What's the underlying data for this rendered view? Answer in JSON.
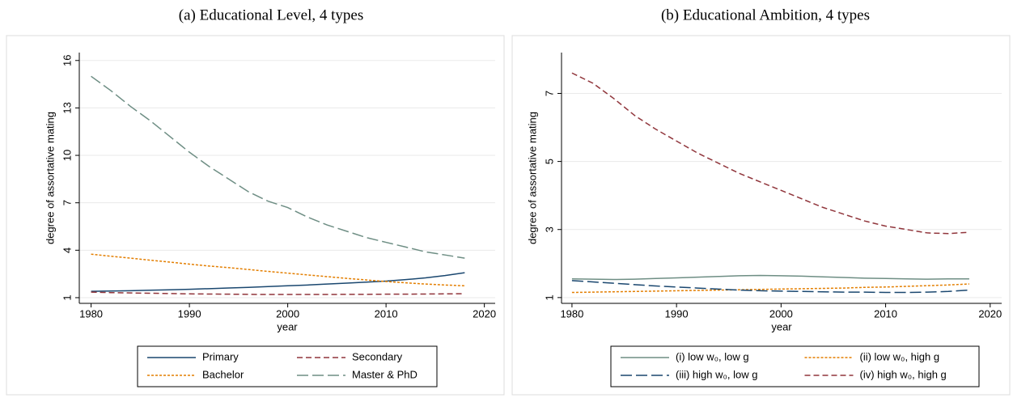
{
  "chart_data": [
    {
      "type": "line",
      "title": "(a) Educational Level, 4 types",
      "x_label": "year",
      "y_label": "degree of assortative mating",
      "x": [
        1980,
        1982,
        1984,
        1986,
        1988,
        1990,
        1992,
        1994,
        1996,
        1998,
        2000,
        2002,
        2004,
        2006,
        2008,
        2010,
        2012,
        2014,
        2016,
        2018
      ],
      "xlim": [
        1978.8,
        2021.1
      ],
      "xticks": [
        1980,
        1990,
        2000,
        2010,
        2020
      ],
      "ylim": [
        0.64,
        16.5
      ],
      "yticks": [
        1,
        4,
        7,
        10,
        13,
        16
      ],
      "grid": true,
      "series": [
        {
          "name": "Primary",
          "color": "#1a476f",
          "dash": "solid",
          "values": [
            1.4,
            1.42,
            1.44,
            1.47,
            1.5,
            1.53,
            1.57,
            1.61,
            1.65,
            1.7,
            1.75,
            1.8,
            1.86,
            1.92,
            1.98,
            2.05,
            2.14,
            2.25,
            2.4,
            2.58
          ]
        },
        {
          "name": "Secondary",
          "color": "#90353b",
          "dash": "dashed",
          "values": [
            1.35,
            1.32,
            1.3,
            1.28,
            1.26,
            1.24,
            1.23,
            1.22,
            1.21,
            1.2,
            1.2,
            1.2,
            1.2,
            1.21,
            1.21,
            1.22,
            1.22,
            1.23,
            1.24,
            1.25
          ]
        },
        {
          "name": "Bachelor",
          "color": "#e37e00",
          "dash": "dotted",
          "values": [
            3.75,
            3.62,
            3.5,
            3.37,
            3.25,
            3.12,
            3.0,
            2.9,
            2.78,
            2.66,
            2.55,
            2.44,
            2.33,
            2.22,
            2.12,
            2.02,
            1.94,
            1.86,
            1.8,
            1.75
          ]
        },
        {
          "name": "Master & PhD",
          "color": "#6e8e84",
          "dash": "longdash",
          "values": [
            15,
            14.1,
            13.1,
            12.2,
            11.2,
            10.2,
            9.3,
            8.5,
            7.7,
            7.1,
            6.7,
            6.1,
            5.6,
            5.2,
            4.8,
            4.5,
            4.2,
            3.9,
            3.7,
            3.5
          ]
        }
      ]
    },
    {
      "type": "line",
      "title": "(b) Educational Ambition, 4 types",
      "x_label": "year",
      "y_label": "degree of assortative mating",
      "x": [
        1980,
        1982,
        1984,
        1986,
        1988,
        1990,
        1992,
        1994,
        1996,
        1998,
        2000,
        2002,
        2004,
        2006,
        2008,
        2010,
        2012,
        2014,
        2016,
        2018
      ],
      "xlim": [
        1979,
        2021.1
      ],
      "xticks": [
        1980,
        1990,
        2000,
        2010,
        2020
      ],
      "ylim": [
        0.83,
        8.2
      ],
      "yticks": [
        1,
        3,
        5,
        7
      ],
      "grid": true,
      "series": [
        {
          "name": "(i) low w₀, low g",
          "color": "#6e8e84",
          "dash": "solid",
          "values": [
            1.55,
            1.54,
            1.53,
            1.54,
            1.56,
            1.58,
            1.6,
            1.62,
            1.64,
            1.65,
            1.64,
            1.63,
            1.61,
            1.59,
            1.57,
            1.56,
            1.55,
            1.54,
            1.55,
            1.55
          ]
        },
        {
          "name": "(ii) low w₀, high g",
          "color": "#e37e00",
          "dash": "dotted",
          "values": [
            1.15,
            1.16,
            1.17,
            1.18,
            1.19,
            1.2,
            1.21,
            1.22,
            1.23,
            1.24,
            1.25,
            1.26,
            1.27,
            1.28,
            1.3,
            1.31,
            1.33,
            1.35,
            1.37,
            1.4
          ]
        },
        {
          "name": "(iii) high w₀, low g",
          "color": "#1a476f",
          "dash": "longdash",
          "values": [
            1.5,
            1.46,
            1.42,
            1.38,
            1.34,
            1.31,
            1.28,
            1.25,
            1.22,
            1.2,
            1.19,
            1.18,
            1.17,
            1.16,
            1.16,
            1.15,
            1.15,
            1.16,
            1.18,
            1.22
          ]
        },
        {
          "name": "(iv) high w₀, high g",
          "color": "#90353b",
          "dash": "dashed",
          "values": [
            7.6,
            7.3,
            6.85,
            6.35,
            5.95,
            5.6,
            5.25,
            4.95,
            4.65,
            4.4,
            4.15,
            3.9,
            3.65,
            3.45,
            3.25,
            3.1,
            3.0,
            2.9,
            2.88,
            2.92
          ]
        }
      ]
    }
  ]
}
